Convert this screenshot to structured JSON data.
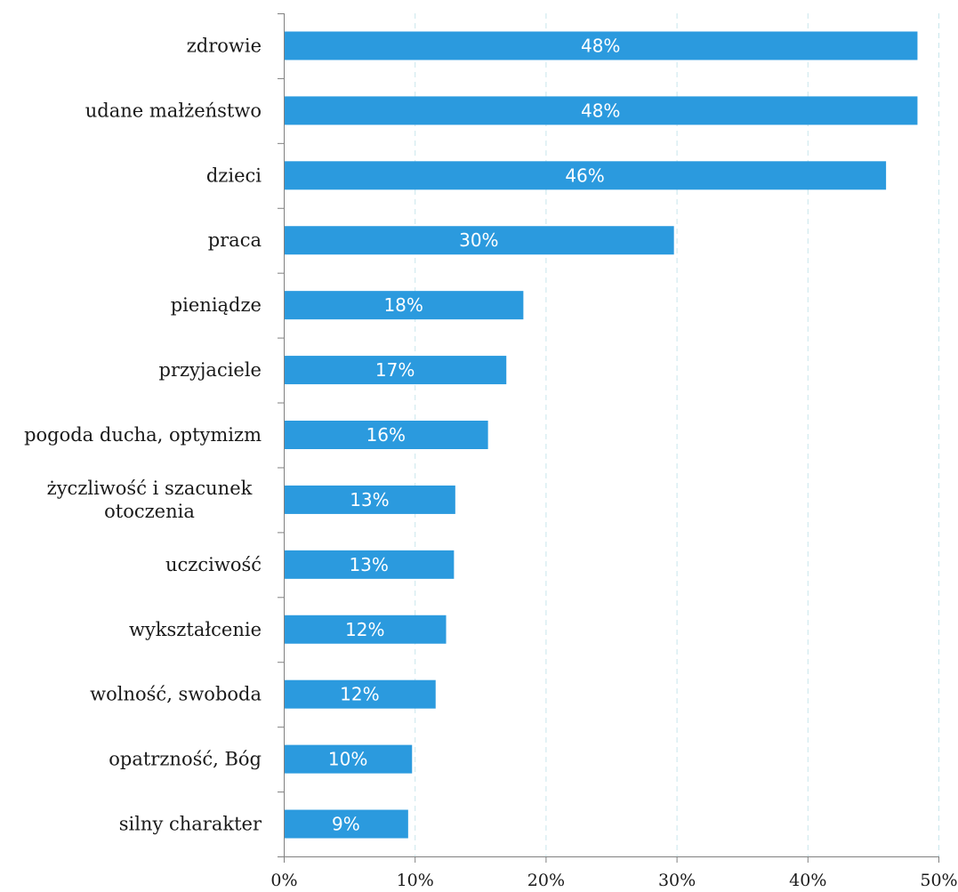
{
  "chart_data": {
    "type": "bar",
    "orientation": "horizontal",
    "title": "",
    "categories": [
      "zdrowie",
      "udane małżeństwo",
      "dzieci",
      "praca",
      "pieniądze",
      "przyjaciele",
      "pogoda ducha, optymizm",
      "życzliwość i szacunek otoczenia",
      "uczciwość",
      "wykształcenie",
      "wolność, swoboda",
      "opatrzność, Bóg",
      "silny charakter"
    ],
    "category_lines": [
      [
        "zdrowie"
      ],
      [
        "udane małżeństwo"
      ],
      [
        "dzieci"
      ],
      [
        "praca"
      ],
      [
        "pieniądze"
      ],
      [
        "przyjaciele"
      ],
      [
        "pogoda ducha, optymizm"
      ],
      [
        "życzliwość i szacunek",
        "otoczenia"
      ],
      [
        "uczciwość"
      ],
      [
        "wykształcenie"
      ],
      [
        "wolność, swoboda"
      ],
      [
        "opatrzność, Bóg"
      ],
      [
        "silny charakter"
      ]
    ],
    "values": [
      48.4,
      48.4,
      46.0,
      29.8,
      18.3,
      17.0,
      15.6,
      13.1,
      13.0,
      12.4,
      11.6,
      9.8,
      9.5
    ],
    "data_labels": [
      "48%",
      "48%",
      "46%",
      "30%",
      "18%",
      "17%",
      "16%",
      "13%",
      "13%",
      "12%",
      "12%",
      "10%",
      "9%"
    ],
    "xlim": [
      0,
      50
    ],
    "xticks": [
      0,
      10,
      20,
      30,
      40,
      50
    ],
    "xtick_labels": [
      "0%",
      "10%",
      "20%",
      "30%",
      "40%",
      "50%"
    ],
    "xlabel": "",
    "ylabel": "",
    "grid": true,
    "legend": "none",
    "bar_color": "#2b9ade",
    "grid_color": "#c9e6ec"
  }
}
